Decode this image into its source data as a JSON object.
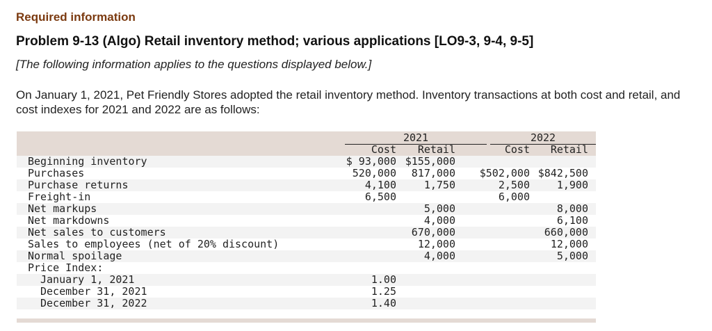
{
  "required": "Required information",
  "title": "Problem 9-13 (Algo) Retail inventory method; various applications [LO9-3, 9-4, 9-5]",
  "note": "[The following information applies to the questions displayed below.]",
  "intro": "On January 1, 2021, Pet Friendly Stores adopted the retail inventory method. Inventory transactions at both cost and retail, and cost indexes for 2021 and 2022 are as follows:",
  "table": {
    "years": [
      "2021",
      "2022"
    ],
    "subheaders": [
      "Cost",
      "Retail",
      "Cost",
      "Retail"
    ],
    "rows": [
      {
        "label": "Beginning inventory",
        "v": [
          "$ 93,000",
          "$155,000",
          "",
          ""
        ]
      },
      {
        "label": "Purchases",
        "v": [
          "520,000",
          "817,000",
          "$502,000",
          "$842,500"
        ]
      },
      {
        "label": "Purchase returns",
        "v": [
          "4,100",
          "1,750",
          "2,500",
          "1,900"
        ]
      },
      {
        "label": "Freight-in",
        "v": [
          "6,500",
          "",
          "6,000",
          ""
        ]
      },
      {
        "label": "Net markups",
        "v": [
          "",
          "5,000",
          "",
          "8,000"
        ]
      },
      {
        "label": "Net markdowns",
        "v": [
          "",
          "4,000",
          "",
          "6,100"
        ]
      },
      {
        "label": "Net sales to customers",
        "v": [
          "",
          "670,000",
          "",
          "660,000"
        ]
      },
      {
        "label": "Sales to employees (net of 20% discount)",
        "v": [
          "",
          "12,000",
          "",
          "12,000"
        ]
      },
      {
        "label": "Normal spoilage",
        "v": [
          "",
          "4,000",
          "",
          "5,000"
        ]
      },
      {
        "label": "Price Index:",
        "v": [
          "",
          "",
          "",
          ""
        ]
      },
      {
        "label": "January 1, 2021",
        "indent": true,
        "v": [
          "1.00",
          "",
          "",
          ""
        ]
      },
      {
        "label": "December 31, 2021",
        "indent": true,
        "v": [
          "1.25",
          "",
          "",
          ""
        ]
      },
      {
        "label": "December 31, 2022",
        "indent": true,
        "v": [
          "1.40",
          "",
          "",
          ""
        ]
      }
    ]
  }
}
